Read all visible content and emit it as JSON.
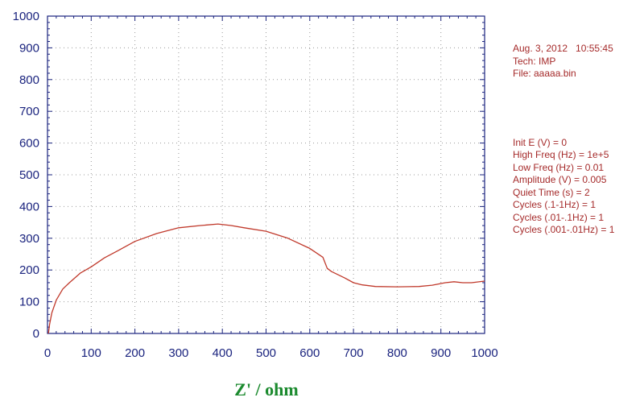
{
  "chart_data": {
    "type": "line",
    "title": "",
    "xlabel": "Z' / ohm",
    "ylabel": "",
    "xlim": [
      0,
      1000
    ],
    "ylim": [
      0,
      1000
    ],
    "xticks": [
      0,
      100,
      200,
      300,
      400,
      500,
      600,
      700,
      800,
      900,
      1000
    ],
    "yticks": [
      0,
      100,
      200,
      300,
      400,
      500,
      600,
      700,
      800,
      900,
      1000
    ],
    "grid": true,
    "series": [
      {
        "color": "#c0392b",
        "x": [
          2,
          5,
          10,
          20,
          35,
          50,
          75,
          100,
          130,
          160,
          200,
          250,
          300,
          350,
          390,
          420,
          450,
          500,
          550,
          600,
          630,
          640,
          650,
          680,
          700,
          720,
          750,
          800,
          850,
          880,
          910,
          930,
          950,
          970,
          1000
        ],
        "y": [
          0,
          30,
          65,
          105,
          140,
          160,
          190,
          210,
          238,
          260,
          290,
          315,
          333,
          340,
          345,
          340,
          333,
          322,
          300,
          268,
          240,
          205,
          195,
          175,
          160,
          153,
          148,
          147,
          148,
          152,
          160,
          163,
          160,
          160,
          165
        ]
      }
    ]
  },
  "info_panel": {
    "header": [
      "Aug. 3, 2012   10:55:45",
      "Tech: IMP",
      "File: aaaaa.bin"
    ],
    "params": [
      "Init E (V) = 0",
      "High Freq (Hz) = 1e+5",
      "Low Freq (Hz) = 0.01",
      "Amplitude (V) = 0.005",
      "Quiet Time (s) = 2",
      "Cycles (.1-1Hz) = 1",
      "Cycles (.01-.1Hz) = 1",
      "Cycles (.001-.01Hz) = 1"
    ]
  }
}
